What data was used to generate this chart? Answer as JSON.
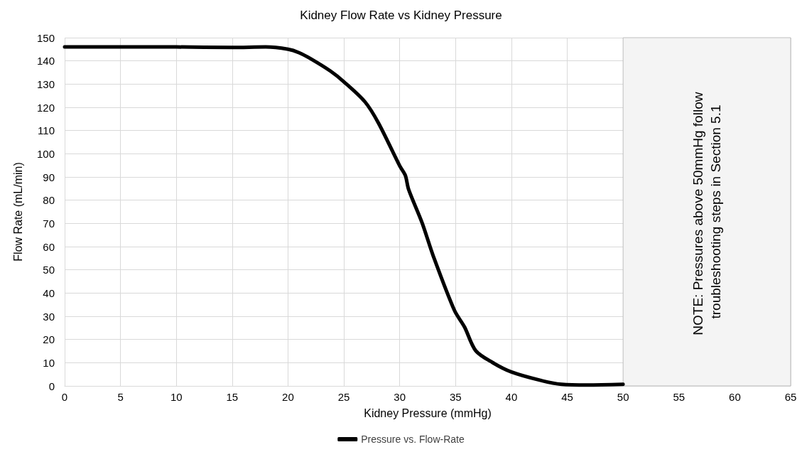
{
  "chart_data": {
    "type": "line",
    "title": "Kidney Flow Rate vs Kidney Pressure",
    "xlabel": "Kidney Pressure (mmHg)",
    "ylabel": "Flow Rate (mL/min)",
    "x": [
      0,
      5,
      10,
      15,
      18,
      20,
      21,
      22,
      23.8,
      25,
      26.9,
      28.1,
      30,
      30.5,
      30.8,
      32,
      33,
      34.9,
      35.8,
      36.8,
      38.3,
      40,
      42.6,
      44.5,
      46.8,
      50
    ],
    "series": [
      {
        "name": "Pressure vs. Flow-Rate",
        "color": "#000000",
        "values": [
          146,
          146,
          146,
          145.8,
          146,
          145,
          143.5,
          141,
          135.6,
          131,
          122.3,
          113.2,
          94.8,
          90.7,
          84.6,
          70.3,
          56,
          32.5,
          25.4,
          15.2,
          10.1,
          6,
          2.4,
          0.7,
          0.4,
          0.7
        ]
      }
    ],
    "xlim": [
      0,
      65
    ],
    "ylim": [
      0,
      150
    ],
    "xticks": [
      0,
      5,
      10,
      15,
      20,
      25,
      30,
      35,
      40,
      45,
      50,
      55,
      60,
      65
    ],
    "yticks": [
      0,
      10,
      20,
      30,
      40,
      50,
      60,
      70,
      80,
      90,
      100,
      110,
      120,
      130,
      140,
      150
    ],
    "bands": [
      {
        "axis": "x",
        "from": 50,
        "to": 65,
        "label": "NOTE: Pressures above 50mmHg follow troubleshooting steps in Section 5.1",
        "color": "#f4f4f4"
      }
    ],
    "grid": true,
    "legend": "bottom",
    "marker": "none",
    "line_style": "solid"
  }
}
